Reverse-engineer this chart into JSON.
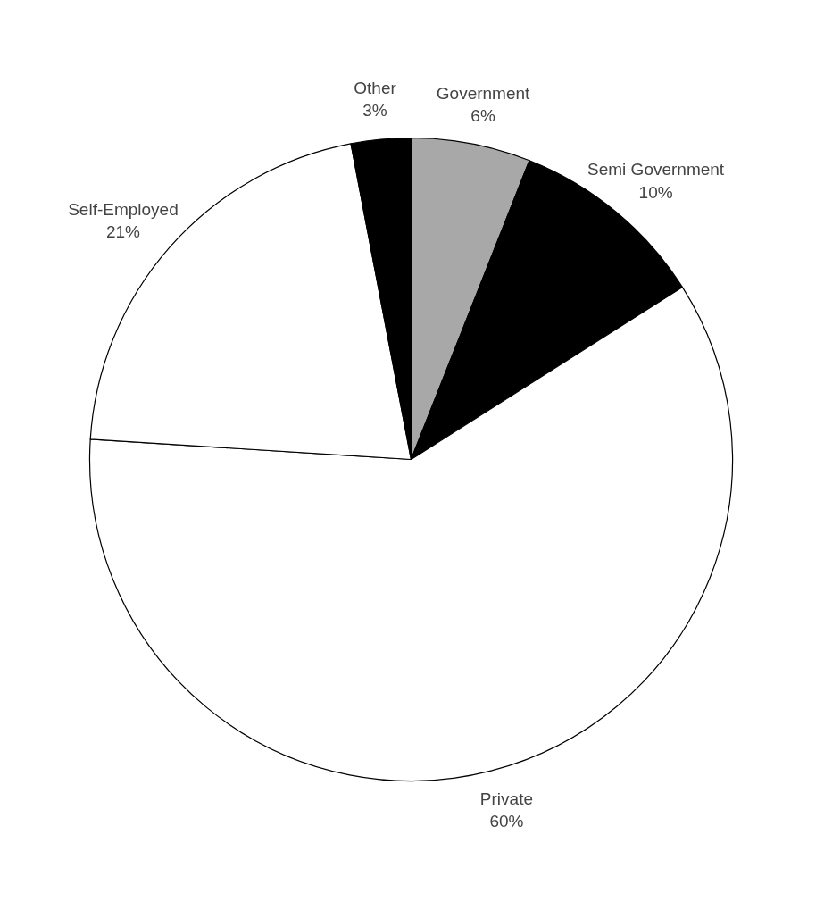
{
  "chart_data": {
    "type": "pie",
    "categories": [
      "Government",
      "Semi Government",
      "Private",
      "Self-Employed",
      "Other"
    ],
    "values": [
      6,
      10,
      60,
      21,
      3
    ],
    "colors": [
      "#a8a8a8",
      "#000000",
      "#ffffff",
      "#ffffff",
      "#000000"
    ],
    "value_labels": [
      "6%",
      "10%",
      "60%",
      "21%",
      "3%"
    ],
    "legend": false
  }
}
